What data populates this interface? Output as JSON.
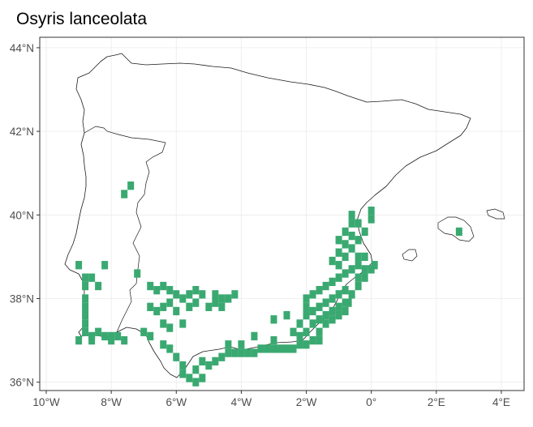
{
  "title": "Osyris lanceolata",
  "x_ticks": [
    {
      "lon": -10,
      "label": "10°W"
    },
    {
      "lon": -8,
      "label": "8°W"
    },
    {
      "lon": -6,
      "label": "6°W"
    },
    {
      "lon": -4,
      "label": "4°W"
    },
    {
      "lon": -2,
      "label": "2°W"
    },
    {
      "lon": 0,
      "label": "0°"
    },
    {
      "lon": 2,
      "label": "2°E"
    },
    {
      "lon": 4,
      "label": "4°E"
    }
  ],
  "y_ticks": [
    {
      "lat": 44,
      "label": "44°N"
    },
    {
      "lat": 42,
      "label": "42°N"
    },
    {
      "lat": 40,
      "label": "40°N"
    },
    {
      "lat": 38,
      "label": "38°N"
    },
    {
      "lat": 36,
      "label": "36°N"
    }
  ],
  "lon_range": [
    -10.2,
    4.7
  ],
  "lat_range": [
    35.8,
    44.25
  ],
  "colors": {
    "occurrence": "#3aa971",
    "coastline": "#1a1a1a",
    "grid": "#ebebeb",
    "panel_border": "#333333"
  },
  "occurrence_cells": [
    [
      -7.4,
      40.7
    ],
    [
      -7.6,
      40.5
    ],
    [
      -9.0,
      38.8
    ],
    [
      -8.2,
      38.8
    ],
    [
      -8.8,
      38.5
    ],
    [
      -8.6,
      38.5
    ],
    [
      -8.8,
      38.3
    ],
    [
      -8.4,
      38.3
    ],
    [
      -7.2,
      38.6
    ],
    [
      -8.8,
      38.0
    ],
    [
      -8.8,
      37.8
    ],
    [
      -8.8,
      37.6
    ],
    [
      -8.8,
      37.4
    ],
    [
      -8.8,
      37.2
    ],
    [
      -8.6,
      37.1
    ],
    [
      -8.4,
      37.2
    ],
    [
      -8.2,
      37.1
    ],
    [
      -8.0,
      37.1
    ],
    [
      -7.8,
      37.1
    ],
    [
      -8.0,
      37.0
    ],
    [
      -7.6,
      37.0
    ],
    [
      -8.6,
      37.0
    ],
    [
      -9.0,
      37.0
    ],
    [
      -6.8,
      38.3
    ],
    [
      -6.6,
      38.2
    ],
    [
      -6.4,
      38.3
    ],
    [
      -6.2,
      38.2
    ],
    [
      -6.0,
      38.1
    ],
    [
      -5.8,
      38.0
    ],
    [
      -5.6,
      38.1
    ],
    [
      -5.4,
      38.2
    ],
    [
      -5.2,
      38.1
    ],
    [
      -4.8,
      38.1
    ],
    [
      -4.6,
      38.0
    ],
    [
      -4.4,
      38.0
    ],
    [
      -4.2,
      38.1
    ],
    [
      -6.8,
      37.8
    ],
    [
      -6.6,
      37.7
    ],
    [
      -6.4,
      37.8
    ],
    [
      -6.2,
      37.9
    ],
    [
      -6.0,
      37.7
    ],
    [
      -5.6,
      37.8
    ],
    [
      -5.4,
      37.9
    ],
    [
      -5.0,
      37.8
    ],
    [
      -4.8,
      37.9
    ],
    [
      -4.6,
      37.8
    ],
    [
      -6.4,
      37.4
    ],
    [
      -6.2,
      37.3
    ],
    [
      -5.8,
      37.4
    ],
    [
      -7.0,
      37.2
    ],
    [
      -6.8,
      37.1
    ],
    [
      -6.4,
      36.9
    ],
    [
      -6.2,
      36.8
    ],
    [
      -6.0,
      36.6
    ],
    [
      -5.8,
      36.4
    ],
    [
      -5.8,
      36.2
    ],
    [
      -5.6,
      36.1
    ],
    [
      -5.4,
      36.0
    ],
    [
      -5.2,
      36.1
    ],
    [
      -5.4,
      36.3
    ],
    [
      -5.0,
      36.4
    ],
    [
      -5.2,
      36.5
    ],
    [
      -4.8,
      36.5
    ],
    [
      -4.6,
      36.6
    ],
    [
      -4.4,
      36.7
    ],
    [
      -4.2,
      36.7
    ],
    [
      -4.0,
      36.7
    ],
    [
      -3.8,
      36.7
    ],
    [
      -3.6,
      36.7
    ],
    [
      -3.4,
      36.8
    ],
    [
      -3.2,
      36.8
    ],
    [
      -3.0,
      36.8
    ],
    [
      -2.8,
      36.8
    ],
    [
      -2.6,
      36.8
    ],
    [
      -4.0,
      36.9
    ],
    [
      -4.4,
      36.9
    ],
    [
      -3.0,
      37.0
    ],
    [
      -3.6,
      37.1
    ],
    [
      -2.4,
      36.8
    ],
    [
      -2.2,
      36.9
    ],
    [
      -2.0,
      36.9
    ],
    [
      -1.8,
      37.0
    ],
    [
      -1.6,
      37.2
    ],
    [
      -1.4,
      37.4
    ],
    [
      -1.2,
      37.5
    ],
    [
      -1.0,
      37.6
    ],
    [
      -0.8,
      37.7
    ],
    [
      -0.7,
      37.9
    ],
    [
      -0.6,
      38.1
    ],
    [
      -0.4,
      38.3
    ],
    [
      -0.2,
      38.5
    ],
    [
      0.0,
      38.7
    ],
    [
      0.1,
      38.8
    ],
    [
      -2.0,
      37.2
    ],
    [
      -1.8,
      37.4
    ],
    [
      -1.6,
      37.5
    ],
    [
      -1.4,
      37.6
    ],
    [
      -1.2,
      37.7
    ],
    [
      -1.0,
      37.8
    ],
    [
      -0.8,
      37.9
    ],
    [
      -2.0,
      37.6
    ],
    [
      -2.0,
      37.8
    ],
    [
      -1.8,
      37.7
    ],
    [
      -1.6,
      37.8
    ],
    [
      -1.4,
      37.9
    ],
    [
      -1.2,
      38.0
    ],
    [
      -1.0,
      38.1
    ],
    [
      -0.8,
      38.2
    ],
    [
      -2.0,
      38.0
    ],
    [
      -1.8,
      38.1
    ],
    [
      -1.6,
      38.2
    ],
    [
      -1.4,
      38.3
    ],
    [
      -1.2,
      38.4
    ],
    [
      -1.0,
      38.5
    ],
    [
      -0.8,
      38.6
    ],
    [
      -0.6,
      38.7
    ],
    [
      -0.4,
      38.8
    ],
    [
      -1.0,
      38.8
    ],
    [
      -0.8,
      39.0
    ],
    [
      -0.6,
      39.2
    ],
    [
      -0.4,
      39.4
    ],
    [
      -0.2,
      39.6
    ],
    [
      -0.6,
      39.8
    ],
    [
      -0.8,
      39.6
    ],
    [
      -1.0,
      39.4
    ],
    [
      -0.8,
      39.3
    ],
    [
      -0.6,
      39.5
    ],
    [
      -0.4,
      39.8
    ],
    [
      -0.4,
      39.0
    ],
    [
      -0.2,
      39.0
    ],
    [
      -1.2,
      38.9
    ],
    [
      -1.0,
      39.1
    ],
    [
      -0.4,
      38.5
    ],
    [
      -0.2,
      38.7
    ],
    [
      -2.4,
      37.2
    ],
    [
      -2.2,
      37.4
    ],
    [
      -2.6,
      37.6
    ],
    [
      -3.0,
      37.5
    ],
    [
      -1.6,
      37.0
    ],
    [
      -2.2,
      37.1
    ],
    [
      0.0,
      39.9
    ],
    [
      0.0,
      40.1
    ],
    [
      -0.6,
      40.0
    ],
    [
      2.7,
      39.6
    ]
  ]
}
